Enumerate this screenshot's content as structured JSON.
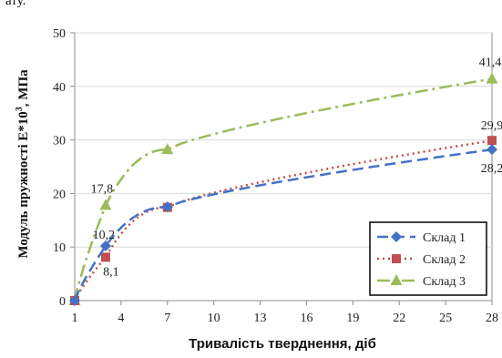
{
  "top_fragment": "ату.",
  "chart_data": {
    "type": "line",
    "xlabel": "Тривалість тверднення, діб",
    "ylabel": "Модуль пружності Е*10",
    "ylabel_sup": "3",
    "ylabel_unit": ", МПа",
    "xlim": [
      1,
      28
    ],
    "ylim": [
      0,
      50
    ],
    "x_ticks": [
      1,
      4,
      7,
      10,
      13,
      16,
      19,
      22,
      25,
      28
    ],
    "y_ticks": [
      0,
      10,
      20,
      30,
      40,
      50
    ],
    "grid": "horizontal",
    "legend": "bottom-right",
    "series": [
      {
        "name": "Склад 1",
        "color": "#4472C4",
        "marker": "diamond",
        "dash": "dash",
        "x": [
          1,
          3,
          7,
          28
        ],
        "y": [
          0,
          10.2,
          17.5,
          28.2
        ],
        "labels": [
          null,
          "10,2",
          null,
          "28,2"
        ]
      },
      {
        "name": "Склад 2",
        "color": "#C0504D",
        "marker": "square",
        "dash": "dot",
        "x": [
          1,
          3,
          7,
          28
        ],
        "y": [
          0,
          8.1,
          17.4,
          29.9
        ],
        "labels": [
          null,
          "8,1",
          null,
          "29,9"
        ]
      },
      {
        "name": "Склад 3",
        "color": "#9BBB59",
        "marker": "triangle",
        "dash": "dashdot",
        "x": [
          1,
          3,
          7,
          28
        ],
        "y": [
          0,
          17.8,
          28.2,
          41.4
        ],
        "labels": [
          null,
          "17,8",
          null,
          "41,4"
        ]
      }
    ]
  }
}
